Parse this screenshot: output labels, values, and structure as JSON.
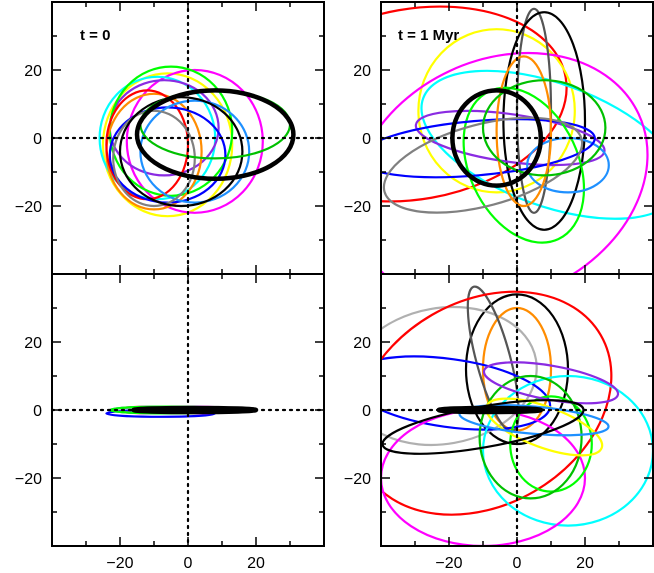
{
  "figure": {
    "panels": [
      {
        "label": "t = 0"
      },
      {
        "label": "t = 1 Myr"
      }
    ]
  },
  "chart_data": [
    {
      "type": "line",
      "panel": "top-left",
      "title": "t = 0",
      "xlim": [
        -40,
        40
      ],
      "ylim": [
        -40,
        40
      ],
      "yticks": [
        -20,
        0,
        20
      ],
      "crosshair_at_origin": true,
      "series": [
        {
          "color": "#ffff00",
          "ellipse": {
            "cx": -6,
            "cy": -2,
            "rx": 19,
            "ry": 21,
            "angle": 0
          }
        },
        {
          "color": "#ff00ff",
          "ellipse": {
            "cx": 2,
            "cy": -1,
            "rx": 20,
            "ry": 21,
            "angle": 0
          }
        },
        {
          "color": "#00ffff",
          "ellipse": {
            "cx": -9,
            "cy": 0,
            "rx": 17,
            "ry": 18,
            "angle": 0
          }
        },
        {
          "color": "#8a2be2",
          "ellipse": {
            "cx": -7,
            "cy": 3,
            "rx": 16,
            "ry": 14,
            "angle": 0
          }
        },
        {
          "color": "#00ff00",
          "ellipse": {
            "cx": -5,
            "cy": 2,
            "rx": 18,
            "ry": 19,
            "angle": 0
          }
        },
        {
          "color": "#ff8c00",
          "ellipse": {
            "cx": -10,
            "cy": -4,
            "rx": 14,
            "ry": 17,
            "angle": 0
          }
        },
        {
          "color": "#ff0000",
          "ellipse": {
            "cx": -12,
            "cy": -2,
            "rx": 12,
            "ry": 16,
            "angle": 0
          }
        },
        {
          "color": "#0000ff",
          "ellipse": {
            "cx": -6,
            "cy": -5,
            "rx": 17,
            "ry": 14,
            "angle": 0
          }
        },
        {
          "color": "#1e90ff",
          "ellipse": {
            "cx": 2,
            "cy": -4,
            "rx": 16,
            "ry": 15,
            "angle": 0
          }
        },
        {
          "color": "#808080",
          "ellipse": {
            "cx": -10,
            "cy": -6,
            "rx": 12,
            "ry": 14,
            "angle": 0
          }
        },
        {
          "color": "#000000",
          "ellipse": {
            "cx": -2,
            "cy": -4,
            "rx": 18,
            "ry": 16,
            "angle": 0
          }
        },
        {
          "color": "#00c000",
          "ellipse": {
            "cx": 8,
            "cy": 4,
            "rx": 22,
            "ry": 10,
            "angle": 0
          }
        },
        {
          "color": "#000000",
          "ellipse": {
            "cx": 8,
            "cy": 1,
            "rx": 23,
            "ry": 13,
            "angle": 0
          },
          "bold": true
        }
      ]
    },
    {
      "type": "line",
      "panel": "top-right",
      "title": "t = 1 Myr",
      "xlim": [
        -40,
        40
      ],
      "ylim": [
        -40,
        40
      ],
      "yticks": [
        -20,
        0,
        20
      ],
      "crosshair_at_origin": true,
      "series": [
        {
          "color": "#ff0000",
          "ellipse": {
            "cx": -30,
            "cy": 10,
            "rx": 45,
            "ry": 28,
            "angle": 10
          }
        },
        {
          "color": "#ffff00",
          "ellipse": {
            "cx": -6,
            "cy": 8,
            "rx": 23,
            "ry": 24,
            "angle": 0
          }
        },
        {
          "color": "#00ffff",
          "ellipse": {
            "cx": 10,
            "cy": -2,
            "rx": 40,
            "ry": 18,
            "angle": -20
          }
        },
        {
          "color": "#ff00ff",
          "ellipse": {
            "cx": -5,
            "cy": -12,
            "rx": 45,
            "ry": 35,
            "angle": 25
          }
        },
        {
          "color": "#555555",
          "ellipse": {
            "cx": 5,
            "cy": 8,
            "rx": 5,
            "ry": 30,
            "angle": 0
          }
        },
        {
          "color": "#000000",
          "ellipse": {
            "cx": 8,
            "cy": 5,
            "rx": 12,
            "ry": 32,
            "angle": 0
          }
        },
        {
          "color": "#8a2be2",
          "ellipse": {
            "cx": -2,
            "cy": 0,
            "rx": 28,
            "ry": 7,
            "angle": -8
          }
        },
        {
          "color": "#00ff00",
          "ellipse": {
            "cx": 2,
            "cy": -8,
            "rx": 16,
            "ry": 24,
            "angle": 25
          }
        },
        {
          "color": "#1e90ff",
          "ellipse": {
            "cx": 15,
            "cy": -8,
            "rx": 12,
            "ry": 8,
            "angle": 0
          }
        },
        {
          "color": "#0000ff",
          "ellipse": {
            "cx": -12,
            "cy": -3,
            "rx": 35,
            "ry": 8,
            "angle": 5
          }
        },
        {
          "color": "#808080",
          "ellipse": {
            "cx": -10,
            "cy": -8,
            "rx": 30,
            "ry": 12,
            "angle": 15
          }
        },
        {
          "color": "#ff8c00",
          "ellipse": {
            "cx": 2,
            "cy": 2,
            "rx": 8,
            "ry": 22,
            "angle": 0
          }
        },
        {
          "color": "#00c000",
          "ellipse": {
            "cx": 8,
            "cy": 3,
            "rx": 18,
            "ry": 14,
            "angle": 0
          }
        },
        {
          "color": "#000000",
          "ellipse": {
            "cx": -6,
            "cy": 0,
            "rx": 13,
            "ry": 14,
            "angle": 0
          },
          "bold": true
        }
      ]
    },
    {
      "type": "line",
      "panel": "bottom-left",
      "xlim": [
        -40,
        40
      ],
      "ylim": [
        -40,
        40
      ],
      "xticks": [
        -20,
        0,
        20
      ],
      "yticks": [
        -20,
        0,
        20
      ],
      "crosshair_at_origin": true,
      "series": [
        {
          "color": "#ff0000",
          "ellipse": {
            "cx": -10,
            "cy": 0,
            "rx": 12,
            "ry": 1,
            "angle": 0
          }
        },
        {
          "color": "#00ffff",
          "ellipse": {
            "cx": -5,
            "cy": 0,
            "rx": 18,
            "ry": 1,
            "angle": 0
          }
        },
        {
          "color": "#0000ff",
          "ellipse": {
            "cx": -8,
            "cy": -1,
            "rx": 16,
            "ry": 1,
            "angle": 0
          }
        },
        {
          "color": "#ff00ff",
          "ellipse": {
            "cx": -3,
            "cy": 0,
            "rx": 20,
            "ry": 1,
            "angle": 0
          }
        },
        {
          "color": "#00ff00",
          "ellipse": {
            "cx": -6,
            "cy": 0,
            "rx": 17,
            "ry": 1,
            "angle": 0
          }
        },
        {
          "color": "#000000",
          "ellipse": {
            "cx": 2,
            "cy": 0,
            "rx": 18,
            "ry": 0.6,
            "angle": 0
          },
          "bold": true
        }
      ]
    },
    {
      "type": "line",
      "panel": "bottom-right",
      "xlim": [
        -40,
        40
      ],
      "ylim": [
        -40,
        40
      ],
      "xticks": [
        -20,
        0,
        20
      ],
      "yticks": [
        -20,
        0,
        20
      ],
      "crosshair_at_origin": true,
      "series": [
        {
          "color": "#000000",
          "ellipse": {
            "cx": 0,
            "cy": 12,
            "rx": 15,
            "ry": 22,
            "angle": 0
          }
        },
        {
          "color": "#b0b0b0",
          "ellipse": {
            "cx": -22,
            "cy": 10,
            "rx": 28,
            "ry": 20,
            "angle": 10
          }
        },
        {
          "color": "#ff8c00",
          "ellipse": {
            "cx": 0,
            "cy": 12,
            "rx": 10,
            "ry": 18,
            "angle": 0
          }
        },
        {
          "color": "#555555",
          "ellipse": {
            "cx": -7,
            "cy": 15,
            "rx": 5,
            "ry": 22,
            "angle": 15
          }
        },
        {
          "color": "#0000ff",
          "ellipse": {
            "cx": -20,
            "cy": 5,
            "rx": 30,
            "ry": 10,
            "angle": -8
          }
        },
        {
          "color": "#ff0000",
          "ellipse": {
            "cx": -10,
            "cy": 2,
            "rx": 40,
            "ry": 30,
            "angle": 30
          }
        },
        {
          "color": "#00ffff",
          "ellipse": {
            "cx": 15,
            "cy": -12,
            "rx": 25,
            "ry": 22,
            "angle": 0
          }
        },
        {
          "color": "#ff00ff",
          "ellipse": {
            "cx": -10,
            "cy": -20,
            "rx": 30,
            "ry": 20,
            "angle": 0
          }
        },
        {
          "color": "#00ff00",
          "ellipse": {
            "cx": 10,
            "cy": -10,
            "rx": 12,
            "ry": 14,
            "angle": 0
          }
        },
        {
          "color": "#00c000",
          "ellipse": {
            "cx": 4,
            "cy": -8,
            "rx": 15,
            "ry": 18,
            "angle": 0
          }
        },
        {
          "color": "#8a2be2",
          "ellipse": {
            "cx": 10,
            "cy": 8,
            "rx": 20,
            "ry": 5,
            "angle": -10
          }
        },
        {
          "color": "#ffff00",
          "ellipse": {
            "cx": 8,
            "cy": -5,
            "rx": 18,
            "ry": 6,
            "angle": -20
          }
        },
        {
          "color": "#1e90ff",
          "ellipse": {
            "cx": 5,
            "cy": -3,
            "rx": 22,
            "ry": 4,
            "angle": -5
          }
        },
        {
          "color": "#000000",
          "ellipse": {
            "cx": -10,
            "cy": -5,
            "rx": 30,
            "ry": 6,
            "angle": 10
          }
        },
        {
          "color": "#000000",
          "ellipse": {
            "cx": -8,
            "cy": 0,
            "rx": 15,
            "ry": 0.6,
            "angle": 0
          },
          "bold": true
        }
      ]
    }
  ]
}
